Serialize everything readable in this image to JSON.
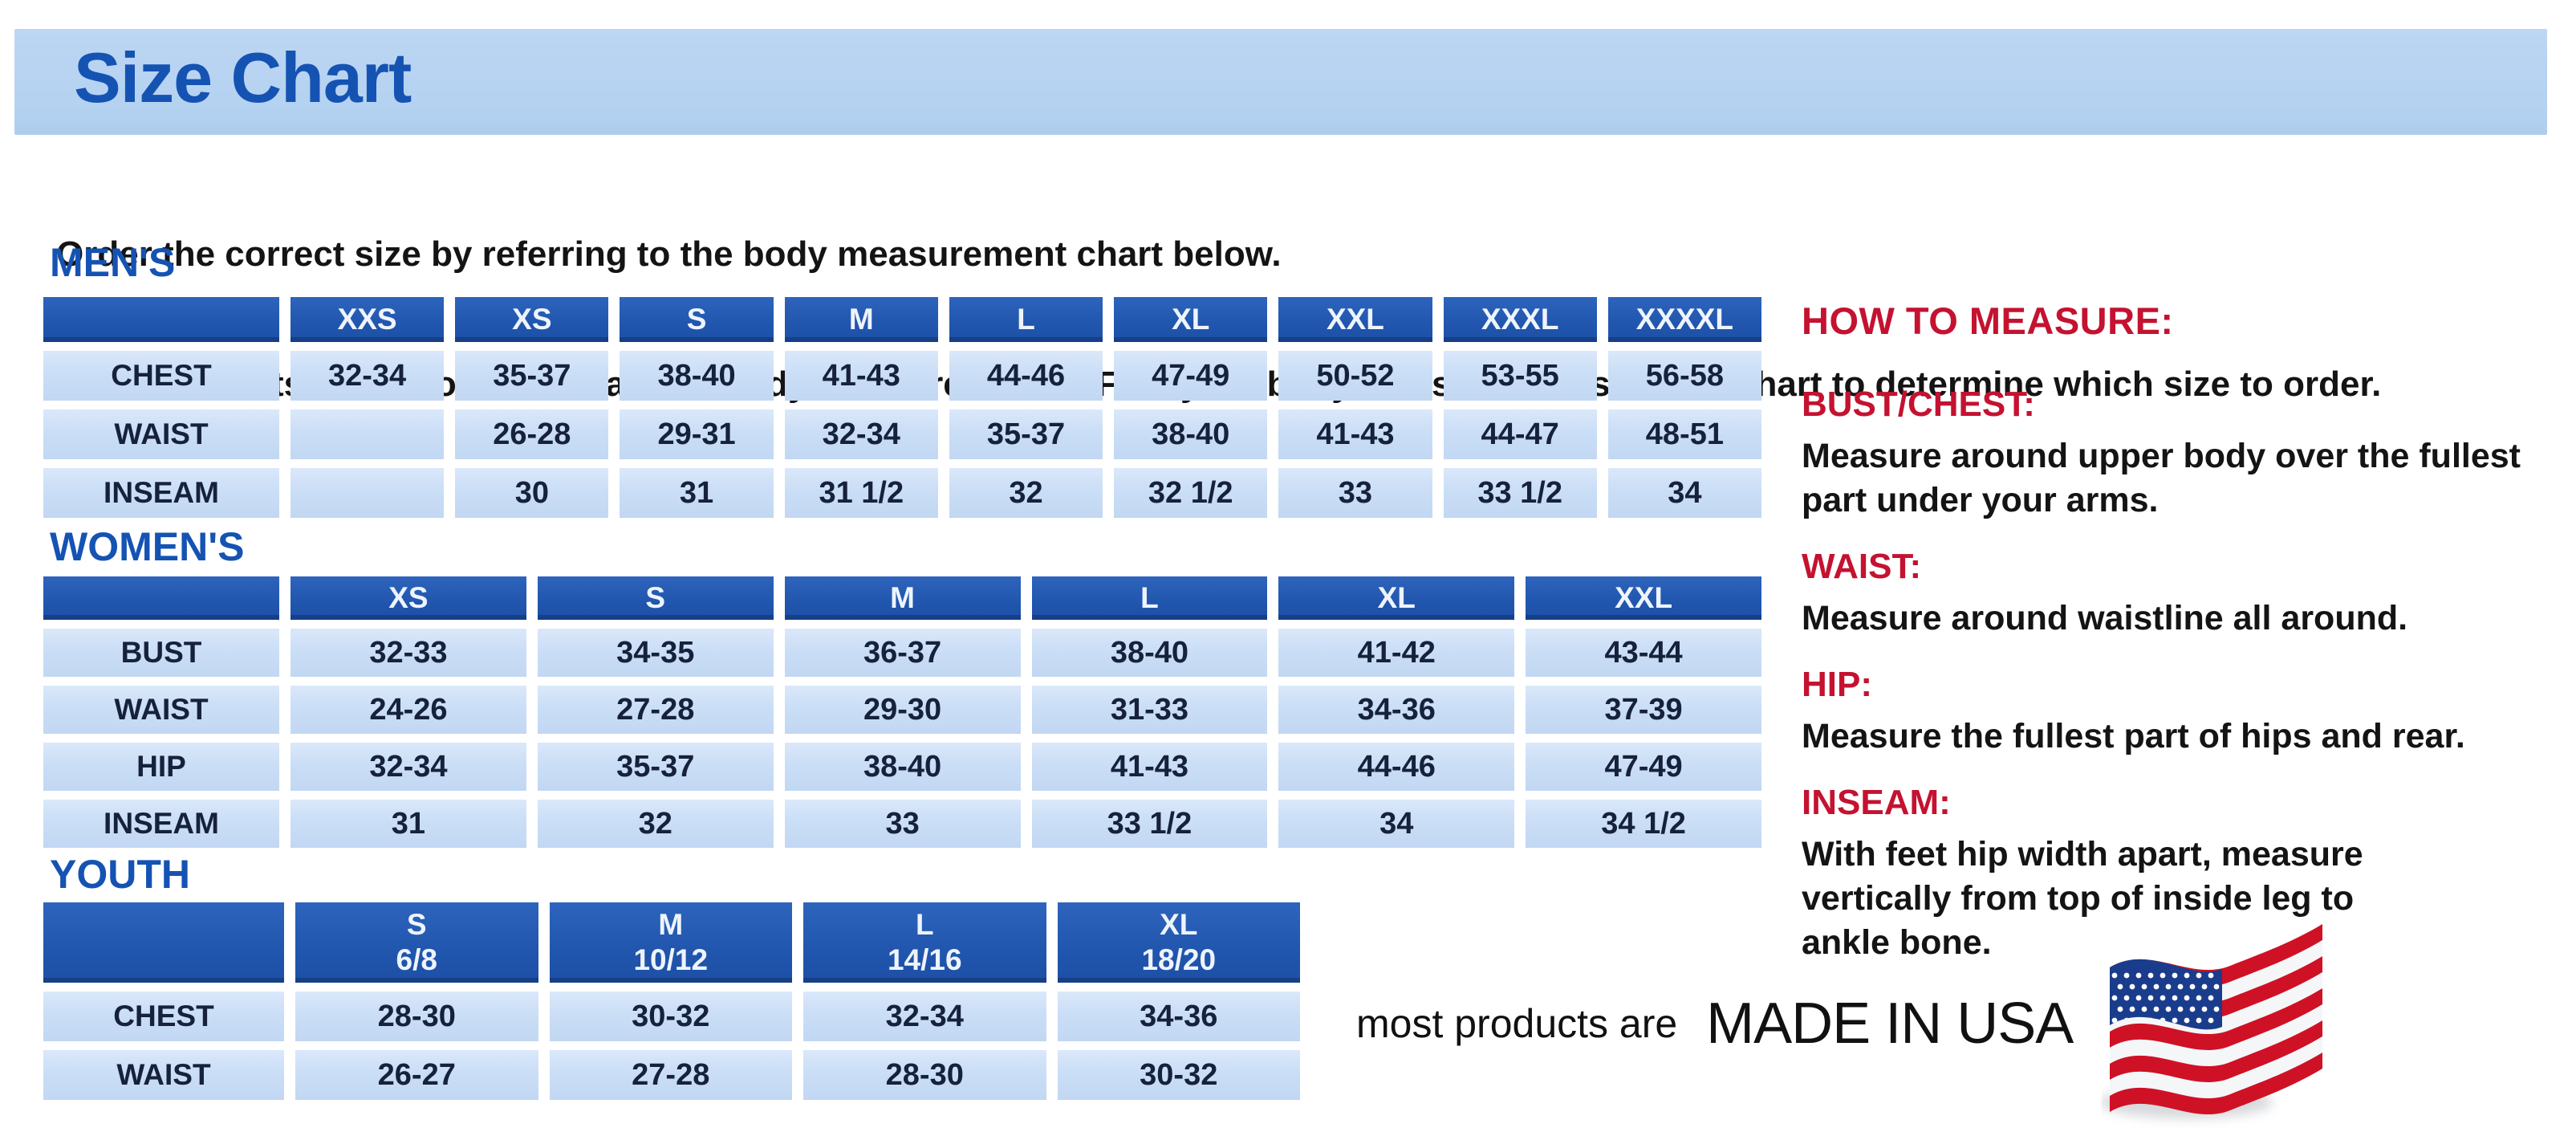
{
  "banner": {
    "title": "Size Chart"
  },
  "intro": {
    "line1": "Order the correct size by referring to the body measurement chart below.",
    "line2": "Measurements shown on size chart are body measurements.  Find your body measurements on the chart to determine which size to order."
  },
  "tables": {
    "mens": {
      "label": "MEN'S",
      "sizes": [
        "XXS",
        "XS",
        "S",
        "M",
        "L",
        "XL",
        "XXL",
        "XXXL",
        "XXXXL"
      ],
      "rows": [
        {
          "label": "CHEST",
          "values": [
            "32-34",
            "35-37",
            "38-40",
            "41-43",
            "44-46",
            "47-49",
            "50-52",
            "53-55",
            "56-58"
          ]
        },
        {
          "label": "WAIST",
          "values": [
            "",
            "26-28",
            "29-31",
            "32-34",
            "35-37",
            "38-40",
            "41-43",
            "44-47",
            "48-51"
          ]
        },
        {
          "label": "INSEAM",
          "values": [
            "",
            "30",
            "31",
            "31 1/2",
            "32",
            "32 1/2",
            "33",
            "33 1/2",
            "34"
          ]
        }
      ]
    },
    "womens": {
      "label": "WOMEN'S",
      "sizes": [
        "XS",
        "S",
        "M",
        "L",
        "XL",
        "XXL"
      ],
      "rows": [
        {
          "label": "BUST",
          "values": [
            "32-33",
            "34-35",
            "36-37",
            "38-40",
            "41-42",
            "43-44"
          ]
        },
        {
          "label": "WAIST",
          "values": [
            "24-26",
            "27-28",
            "29-30",
            "31-33",
            "34-36",
            "37-39"
          ]
        },
        {
          "label": "HIP",
          "values": [
            "32-34",
            "35-37",
            "38-40",
            "41-43",
            "44-46",
            "47-49"
          ]
        },
        {
          "label": "INSEAM",
          "values": [
            "31",
            "32",
            "33",
            "33 1/2",
            "34",
            "34 1/2"
          ]
        }
      ]
    },
    "youth": {
      "label": "YOUTH",
      "sizes": [
        [
          "S",
          "6/8"
        ],
        [
          "M",
          "10/12"
        ],
        [
          "L",
          "14/16"
        ],
        [
          "XL",
          "18/20"
        ]
      ],
      "rows": [
        {
          "label": "CHEST",
          "values": [
            "28-30",
            "30-32",
            "32-34",
            "34-36"
          ]
        },
        {
          "label": "WAIST",
          "values": [
            "26-27",
            "27-28",
            "28-30",
            "30-32"
          ]
        }
      ]
    }
  },
  "how_to_measure": {
    "title": "HOW TO MEASURE:",
    "items": [
      {
        "label": "BUST/CHEST:",
        "text": "Measure around upper body over the fullest part under your arms."
      },
      {
        "label": "WAIST:",
        "text": "Measure around waistline all around."
      },
      {
        "label": "HIP:",
        "text": "Measure the fullest part of hips and rear."
      },
      {
        "label": "INSEAM:",
        "text": "With feet hip width apart, measure vertically from top of inside leg to ankle bone."
      }
    ]
  },
  "footer": {
    "prefix": "most products are",
    "emphasis": "MADE IN USA",
    "flag_icon": "us-flag-icon"
  },
  "colors": {
    "banner_bg": "#b5d2f1",
    "heading_blue": "#1553b3",
    "header_cell_blue": "#2156ae",
    "cell_bg": "#cadef6",
    "accent_red": "#c41230",
    "flag_red": "#cf1126",
    "flag_blue": "#1a3c8c"
  }
}
